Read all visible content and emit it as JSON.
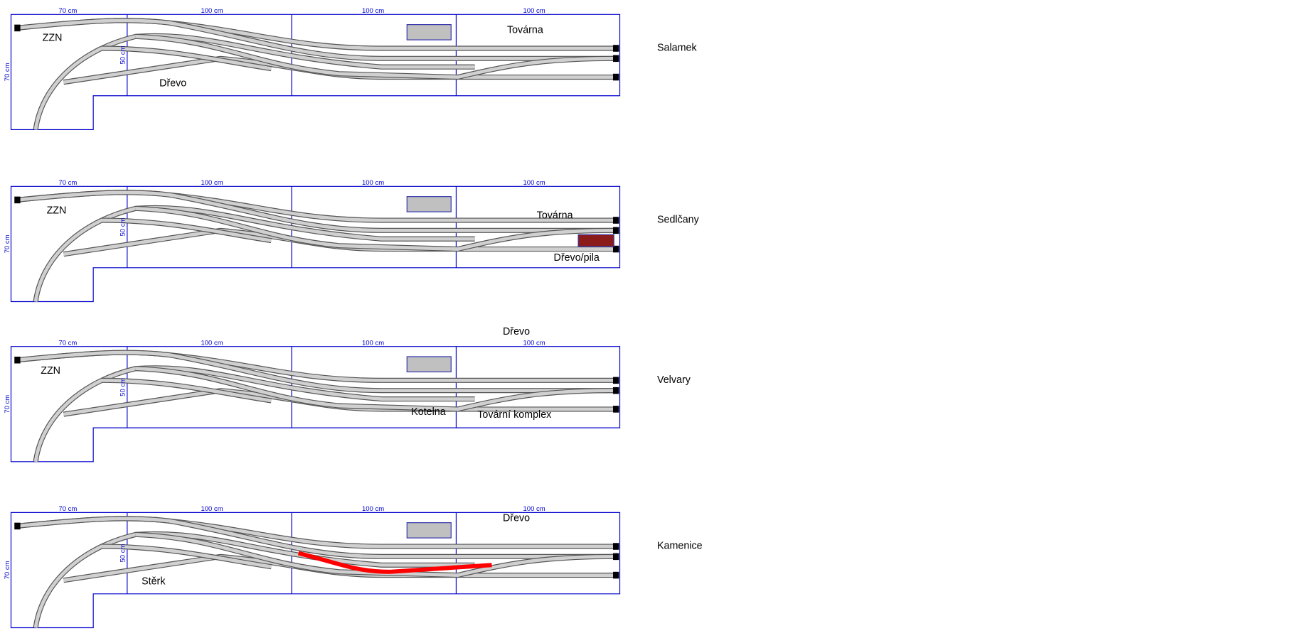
{
  "panels": [
    {
      "name": "Salamek",
      "dims": [
        "70 cm",
        "100 cm",
        "100 cm",
        "100 cm",
        "50 cm",
        "70 cm"
      ],
      "labels": [
        "ZZN",
        "Dřevo",
        "Továrna"
      ]
    },
    {
      "name": "Sedlčany",
      "dims": [
        "70 cm",
        "100 cm",
        "100 cm",
        "100 cm",
        "50 cm",
        "70 cm"
      ],
      "labels": [
        "ZZN",
        "Továrna",
        "Dřevo/pila"
      ]
    },
    {
      "name": "Velvary",
      "dims": [
        "70 cm",
        "100 cm",
        "100 cm",
        "100 cm",
        "50 cm",
        "70 cm"
      ],
      "labels": [
        "ZZN",
        "Dřevo",
        "Kotelna",
        "Tovární komplex"
      ]
    },
    {
      "name": "Kamenice",
      "dims": [
        "70 cm",
        "100 cm",
        "100 cm",
        "100 cm",
        "50 cm",
        "70 cm"
      ],
      "labels": [
        "Dřevo",
        "Stěrk"
      ]
    }
  ]
}
